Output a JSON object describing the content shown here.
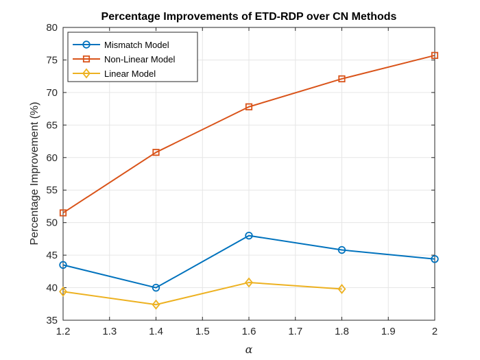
{
  "chart_data": {
    "type": "line",
    "title": "Percentage Improvements of ETD-RDP over CN Methods",
    "xlabel": "α",
    "ylabel": "Percentage Improvement (%)",
    "xlim": [
      1.2,
      2.0
    ],
    "ylim": [
      35,
      80
    ],
    "xticks": [
      1.2,
      1.3,
      1.4,
      1.5,
      1.6,
      1.7,
      1.8,
      1.9,
      2.0
    ],
    "xtick_labels": [
      "1.2",
      "1.3",
      "1.4",
      "1.5",
      "1.6",
      "1.7",
      "1.8",
      "1.9",
      "2"
    ],
    "yticks": [
      35,
      40,
      45,
      50,
      55,
      60,
      65,
      70,
      75,
      80
    ],
    "ytick_labels": [
      "35",
      "40",
      "45",
      "50",
      "55",
      "60",
      "65",
      "70",
      "75",
      "80"
    ],
    "grid": true,
    "legend_position": "top-left",
    "series": [
      {
        "name": "Mismatch Model",
        "marker": "circle",
        "color": "#0072BD",
        "x": [
          1.2,
          1.4,
          1.6,
          1.8,
          2.0
        ],
        "y": [
          43.5,
          40.0,
          48.0,
          45.8,
          44.4
        ]
      },
      {
        "name": "Non-Linear Model",
        "marker": "square",
        "color": "#D95319",
        "x": [
          1.2,
          1.4,
          1.6,
          1.8,
          2.0
        ],
        "y": [
          51.5,
          60.8,
          67.8,
          72.1,
          75.7
        ]
      },
      {
        "name": "Linear Model",
        "marker": "diamond",
        "color": "#EDB120",
        "x": [
          1.2,
          1.4,
          1.6,
          1.8
        ],
        "y": [
          39.4,
          37.4,
          40.8,
          39.8
        ]
      }
    ]
  }
}
